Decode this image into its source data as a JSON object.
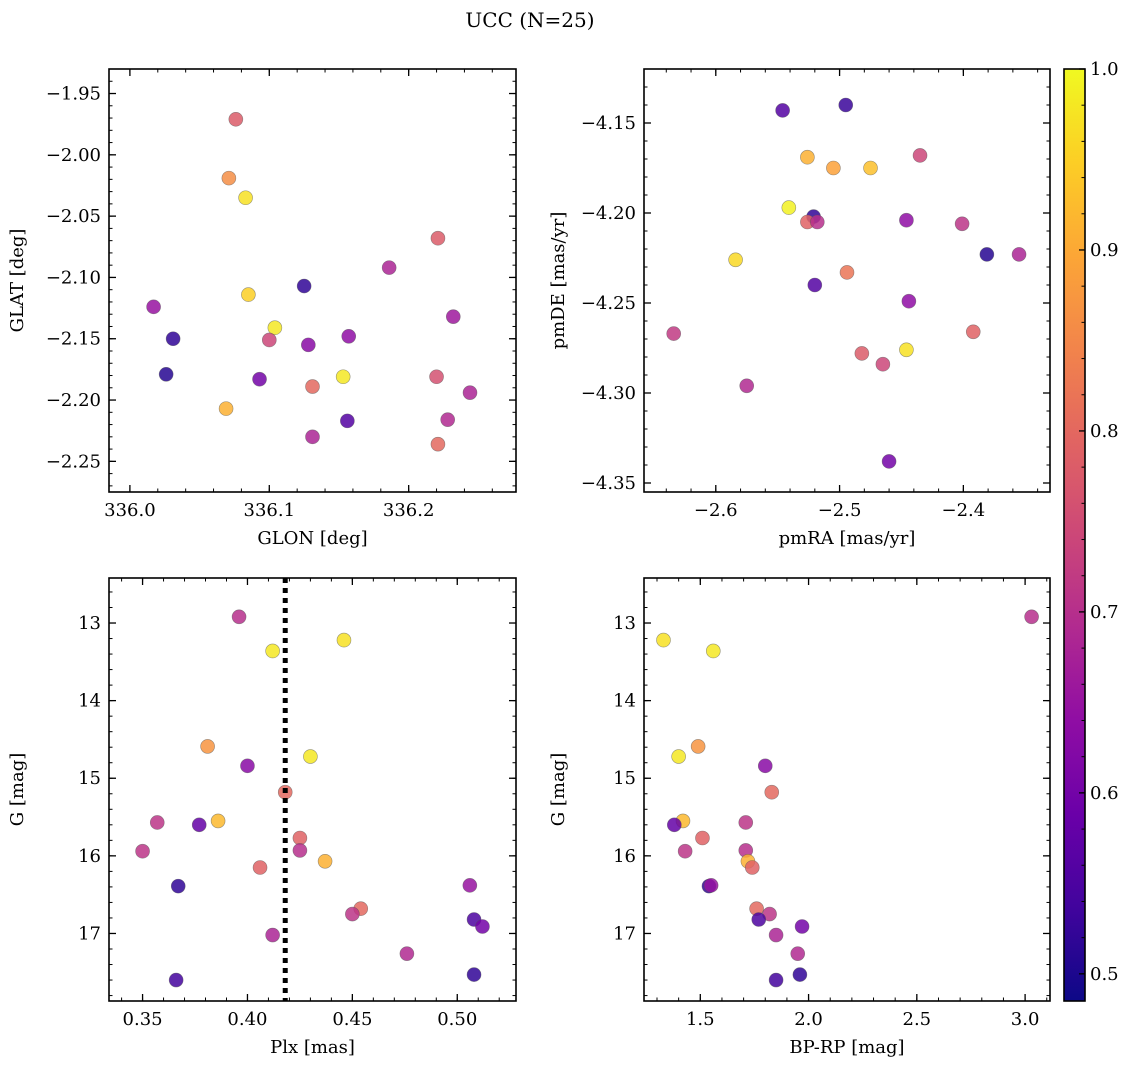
{
  "title": "UCC (N=25)",
  "colorbar": {
    "range": [
      0.485,
      1.0
    ],
    "ticks": [
      "0.5",
      "0.6",
      "0.7",
      "0.8",
      "0.9",
      "1.0"
    ],
    "tick_values": [
      0.5,
      0.6,
      0.7,
      0.8,
      0.9,
      1.0
    ],
    "cmap": "plasma"
  },
  "chart_data": [
    {
      "type": "scatter",
      "xlabel": "GLON [deg]",
      "ylabel": "GLAT [deg]",
      "xlim": [
        335.985,
        336.277
      ],
      "ylim": [
        -2.275,
        -1.93
      ],
      "xticks": [
        336.0,
        336.1,
        336.2
      ],
      "xtick_labels": [
        "336.0",
        "336.1",
        "336.2"
      ],
      "yticks": [
        -1.95,
        -2.0,
        -2.05,
        -2.1,
        -2.15,
        -2.2,
        -2.25
      ],
      "ytick_labels": [
        "−1.95",
        "−2.00",
        "−2.05",
        "−2.10",
        "−2.15",
        "−2.20",
        "−2.25"
      ],
      "invert_y": false,
      "points": [
        {
          "x": 336.076,
          "y": -1.971,
          "c": 0.78
        },
        {
          "x": 336.071,
          "y": -2.019,
          "c": 0.86
        },
        {
          "x": 336.083,
          "y": -2.035,
          "c": 0.97
        },
        {
          "x": 336.221,
          "y": -2.068,
          "c": 0.78
        },
        {
          "x": 336.186,
          "y": -2.092,
          "c": 0.68
        },
        {
          "x": 336.125,
          "y": -2.107,
          "c": 0.52
        },
        {
          "x": 336.085,
          "y": -2.114,
          "c": 0.95
        },
        {
          "x": 336.017,
          "y": -2.124,
          "c": 0.65
        },
        {
          "x": 336.232,
          "y": -2.132,
          "c": 0.66
        },
        {
          "x": 336.104,
          "y": -2.141,
          "c": 0.98
        },
        {
          "x": 336.157,
          "y": -2.148,
          "c": 0.64
        },
        {
          "x": 336.031,
          "y": -2.15,
          "c": 0.52
        },
        {
          "x": 336.1,
          "y": -2.151,
          "c": 0.74
        },
        {
          "x": 336.128,
          "y": -2.155,
          "c": 0.63
        },
        {
          "x": 336.026,
          "y": -2.179,
          "c": 0.51
        },
        {
          "x": 336.22,
          "y": -2.181,
          "c": 0.76
        },
        {
          "x": 336.153,
          "y": -2.181,
          "c": 0.98
        },
        {
          "x": 336.093,
          "y": -2.183,
          "c": 0.6
        },
        {
          "x": 336.131,
          "y": -2.189,
          "c": 0.8
        },
        {
          "x": 336.244,
          "y": -2.194,
          "c": 0.68
        },
        {
          "x": 336.069,
          "y": -2.207,
          "c": 0.91
        },
        {
          "x": 336.228,
          "y": -2.216,
          "c": 0.69
        },
        {
          "x": 336.156,
          "y": -2.217,
          "c": 0.56
        },
        {
          "x": 336.131,
          "y": -2.23,
          "c": 0.68
        },
        {
          "x": 336.221,
          "y": -2.236,
          "c": 0.8
        }
      ]
    },
    {
      "type": "scatter",
      "xlabel": "pmRA [mas/yr]",
      "ylabel": "pmDE [mas/yr]",
      "xlim": [
        -2.658,
        -2.33
      ],
      "ylim": [
        -4.355,
        -4.12
      ],
      "xticks": [
        -2.6,
        -2.5,
        -2.4
      ],
      "xtick_labels": [
        "−2.6",
        "−2.5",
        "−2.4"
      ],
      "yticks": [
        -4.15,
        -4.2,
        -4.25,
        -4.3,
        -4.35
      ],
      "ytick_labels": [
        "−4.15",
        "−4.20",
        "−4.25",
        "−4.30",
        "−4.35"
      ],
      "invert_y": false,
      "points": [
        {
          "x": -2.546,
          "y": -4.143,
          "c": 0.56
        },
        {
          "x": -2.495,
          "y": -4.14,
          "c": 0.53
        },
        {
          "x": -2.526,
          "y": -4.169,
          "c": 0.91
        },
        {
          "x": -2.505,
          "y": -4.175,
          "c": 0.89
        },
        {
          "x": -2.475,
          "y": -4.175,
          "c": 0.93
        },
        {
          "x": -2.435,
          "y": -4.168,
          "c": 0.74
        },
        {
          "x": -2.541,
          "y": -4.197,
          "c": 0.99
        },
        {
          "x": -2.521,
          "y": -4.202,
          "c": 0.52
        },
        {
          "x": -2.526,
          "y": -4.205,
          "c": 0.79
        },
        {
          "x": -2.518,
          "y": -4.205,
          "c": 0.7
        },
        {
          "x": -2.446,
          "y": -4.204,
          "c": 0.64
        },
        {
          "x": -2.401,
          "y": -4.206,
          "c": 0.71
        },
        {
          "x": -2.381,
          "y": -4.223,
          "c": 0.51
        },
        {
          "x": -2.355,
          "y": -4.223,
          "c": 0.68
        },
        {
          "x": -2.584,
          "y": -4.226,
          "c": 0.96
        },
        {
          "x": -2.52,
          "y": -4.24,
          "c": 0.56
        },
        {
          "x": -2.494,
          "y": -4.233,
          "c": 0.82
        },
        {
          "x": -2.444,
          "y": -4.249,
          "c": 0.64
        },
        {
          "x": -2.634,
          "y": -4.267,
          "c": 0.72
        },
        {
          "x": -2.392,
          "y": -4.266,
          "c": 0.79
        },
        {
          "x": -2.482,
          "y": -4.278,
          "c": 0.78
        },
        {
          "x": -2.465,
          "y": -4.284,
          "c": 0.74
        },
        {
          "x": -2.446,
          "y": -4.276,
          "c": 0.97
        },
        {
          "x": -2.575,
          "y": -4.296,
          "c": 0.69
        },
        {
          "x": -2.46,
          "y": -4.338,
          "c": 0.6
        }
      ]
    },
    {
      "type": "scatter",
      "xlabel": "Plx [mas]",
      "ylabel": "G [mag]",
      "xlim": [
        0.334,
        0.528
      ],
      "ylim": [
        17.87,
        12.42
      ],
      "xticks": [
        0.35,
        0.4,
        0.45,
        0.5
      ],
      "xtick_labels": [
        "0.35",
        "0.40",
        "0.45",
        "0.50"
      ],
      "yticks": [
        13,
        14,
        15,
        16,
        17
      ],
      "ytick_labels": [
        "13",
        "14",
        "15",
        "16",
        "17"
      ],
      "invert_y": true,
      "vline": {
        "x": 0.418,
        "style": "dotted"
      },
      "points": [
        {
          "x": 0.396,
          "y": 12.92,
          "c": 0.7
        },
        {
          "x": 0.446,
          "y": 13.22,
          "c": 0.97
        },
        {
          "x": 0.412,
          "y": 13.36,
          "c": 0.98
        },
        {
          "x": 0.381,
          "y": 14.59,
          "c": 0.87
        },
        {
          "x": 0.43,
          "y": 14.72,
          "c": 0.98
        },
        {
          "x": 0.4,
          "y": 14.84,
          "c": 0.63
        },
        {
          "x": 0.418,
          "y": 15.18,
          "c": 0.8
        },
        {
          "x": 0.386,
          "y": 15.55,
          "c": 0.92
        },
        {
          "x": 0.357,
          "y": 15.57,
          "c": 0.71
        },
        {
          "x": 0.377,
          "y": 15.6,
          "c": 0.58
        },
        {
          "x": 0.425,
          "y": 15.77,
          "c": 0.79
        },
        {
          "x": 0.35,
          "y": 15.94,
          "c": 0.71
        },
        {
          "x": 0.425,
          "y": 15.93,
          "c": 0.7
        },
        {
          "x": 0.437,
          "y": 16.07,
          "c": 0.91
        },
        {
          "x": 0.406,
          "y": 16.15,
          "c": 0.79
        },
        {
          "x": 0.367,
          "y": 16.39,
          "c": 0.52
        },
        {
          "x": 0.506,
          "y": 16.38,
          "c": 0.65
        },
        {
          "x": 0.454,
          "y": 16.68,
          "c": 0.8
        },
        {
          "x": 0.45,
          "y": 16.75,
          "c": 0.71
        },
        {
          "x": 0.508,
          "y": 16.82,
          "c": 0.55
        },
        {
          "x": 0.512,
          "y": 16.91,
          "c": 0.6
        },
        {
          "x": 0.412,
          "y": 17.02,
          "c": 0.68
        },
        {
          "x": 0.476,
          "y": 17.26,
          "c": 0.69
        },
        {
          "x": 0.508,
          "y": 17.53,
          "c": 0.52
        },
        {
          "x": 0.366,
          "y": 17.6,
          "c": 0.54
        }
      ]
    },
    {
      "type": "scatter",
      "xlabel": "BP-RP [mag]",
      "ylabel": "G [mag]",
      "xlim": [
        1.24,
        3.115
      ],
      "ylim": [
        17.87,
        12.42
      ],
      "xticks": [
        1.5,
        2.0,
        2.5,
        3.0
      ],
      "xtick_labels": [
        "1.5",
        "2.0",
        "2.5",
        "3.0"
      ],
      "yticks": [
        13,
        14,
        15,
        16,
        17
      ],
      "ytick_labels": [
        "13",
        "14",
        "15",
        "16",
        "17"
      ],
      "invert_y": true,
      "points": [
        {
          "x": 3.03,
          "y": 12.92,
          "c": 0.7
        },
        {
          "x": 1.33,
          "y": 13.22,
          "c": 0.97
        },
        {
          "x": 1.56,
          "y": 13.36,
          "c": 0.98
        },
        {
          "x": 1.49,
          "y": 14.59,
          "c": 0.87
        },
        {
          "x": 1.4,
          "y": 14.72,
          "c": 0.98
        },
        {
          "x": 1.8,
          "y": 14.84,
          "c": 0.63
        },
        {
          "x": 1.83,
          "y": 15.18,
          "c": 0.8
        },
        {
          "x": 1.42,
          "y": 15.55,
          "c": 0.92
        },
        {
          "x": 1.71,
          "y": 15.57,
          "c": 0.71
        },
        {
          "x": 1.38,
          "y": 15.6,
          "c": 0.58
        },
        {
          "x": 1.51,
          "y": 15.77,
          "c": 0.79
        },
        {
          "x": 1.43,
          "y": 15.94,
          "c": 0.71
        },
        {
          "x": 1.71,
          "y": 15.93,
          "c": 0.7
        },
        {
          "x": 1.72,
          "y": 16.07,
          "c": 0.91
        },
        {
          "x": 1.74,
          "y": 16.15,
          "c": 0.79
        },
        {
          "x": 1.54,
          "y": 16.39,
          "c": 0.52
        },
        {
          "x": 1.55,
          "y": 16.38,
          "c": 0.65
        },
        {
          "x": 1.76,
          "y": 16.68,
          "c": 0.8
        },
        {
          "x": 1.82,
          "y": 16.75,
          "c": 0.71
        },
        {
          "x": 1.77,
          "y": 16.82,
          "c": 0.55
        },
        {
          "x": 1.97,
          "y": 16.91,
          "c": 0.6
        },
        {
          "x": 1.85,
          "y": 17.02,
          "c": 0.68
        },
        {
          "x": 1.95,
          "y": 17.26,
          "c": 0.69
        },
        {
          "x": 1.96,
          "y": 17.53,
          "c": 0.52
        },
        {
          "x": 1.85,
          "y": 17.6,
          "c": 0.54
        }
      ]
    }
  ]
}
